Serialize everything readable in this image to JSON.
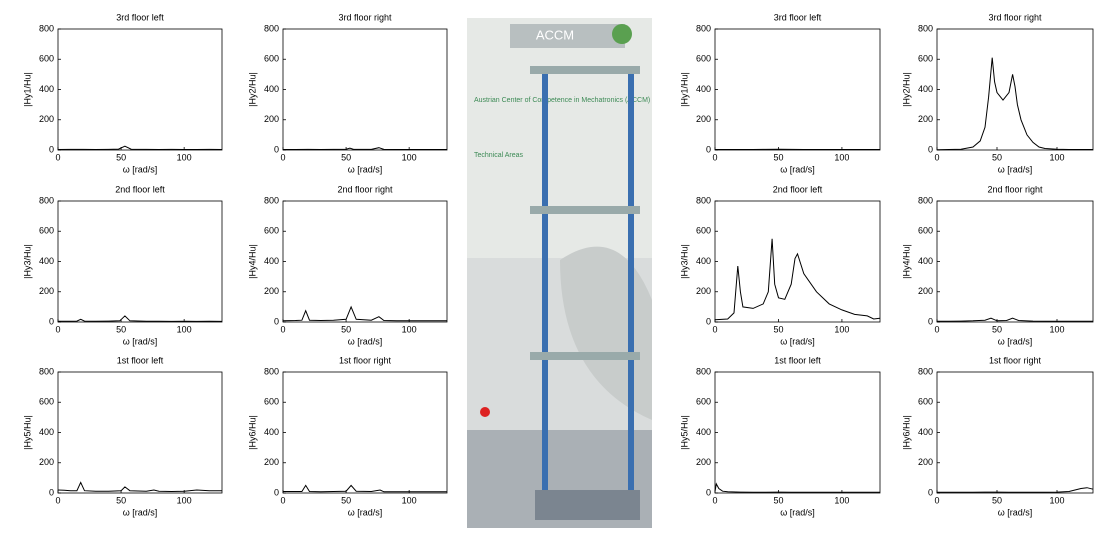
{
  "photo": {
    "logo": "ACCM",
    "heading": "Austrian Center of Competence in Mechatronics (ACCM)",
    "section": "Technical Areas"
  },
  "chart_data": [
    {
      "type": "line",
      "title": "3rd floor left",
      "xlabel": "ω [rad/s]",
      "ylabel": "|Hy1/Hu|",
      "color": "#000000",
      "xlim": [
        0,
        130
      ],
      "ylim": [
        0,
        800
      ],
      "xticks": [
        0,
        50,
        100
      ],
      "yticks": [
        0,
        200,
        400,
        600,
        800
      ],
      "x": [
        0,
        10,
        20,
        30,
        40,
        48,
        53,
        58,
        70,
        80,
        90,
        100,
        110,
        120,
        130
      ],
      "values": [
        3,
        4,
        4,
        3,
        4,
        6,
        25,
        5,
        4,
        3,
        4,
        3,
        3,
        4,
        3
      ]
    },
    {
      "type": "line",
      "title": "3rd floor right",
      "xlabel": "ω [rad/s]",
      "ylabel": "|Hy2/Hu|",
      "color": "#000000",
      "xlim": [
        0,
        130
      ],
      "ylim": [
        0,
        800
      ],
      "xticks": [
        0,
        50,
        100
      ],
      "yticks": [
        0,
        200,
        400,
        600,
        800
      ],
      "x": [
        0,
        10,
        20,
        30,
        40,
        50,
        53,
        56,
        70,
        76,
        80,
        90,
        100,
        110,
        120,
        130
      ],
      "values": [
        3,
        3,
        4,
        3,
        4,
        5,
        12,
        4,
        4,
        15,
        4,
        3,
        3,
        3,
        3,
        3
      ]
    },
    {
      "type": "line",
      "title": "2nd floor left",
      "xlabel": "ω [rad/s]",
      "ylabel": "|Hy3/Hu|",
      "color": "#000000",
      "xlim": [
        0,
        130
      ],
      "ylim": [
        0,
        800
      ],
      "xticks": [
        0,
        50,
        100
      ],
      "yticks": [
        0,
        200,
        400,
        600,
        800
      ],
      "x": [
        0,
        10,
        15,
        18,
        21,
        30,
        40,
        49,
        53,
        57,
        70,
        80,
        90,
        100,
        110,
        120,
        130
      ],
      "values": [
        5,
        5,
        6,
        18,
        6,
        5,
        6,
        8,
        40,
        8,
        5,
        5,
        4,
        5,
        4,
        5,
        4
      ]
    },
    {
      "type": "line",
      "title": "2nd floor right",
      "xlabel": "ω [rad/s]",
      "ylabel": "|Hy4/Hu|",
      "color": "#000000",
      "xlim": [
        0,
        130
      ],
      "ylim": [
        0,
        800
      ],
      "xticks": [
        0,
        50,
        100
      ],
      "yticks": [
        0,
        200,
        400,
        600,
        800
      ],
      "x": [
        0,
        10,
        15,
        18,
        21,
        30,
        40,
        50,
        54,
        58,
        70,
        76,
        80,
        90,
        100,
        110,
        120,
        130
      ],
      "values": [
        8,
        10,
        12,
        75,
        12,
        10,
        12,
        18,
        100,
        18,
        12,
        35,
        10,
        8,
        8,
        8,
        8,
        8
      ]
    },
    {
      "type": "line",
      "title": "1st floor left",
      "xlabel": "ω [rad/s]",
      "ylabel": "|Hy5/Hu|",
      "color": "#000000",
      "xlim": [
        0,
        130
      ],
      "ylim": [
        0,
        800
      ],
      "xticks": [
        0,
        50,
        100
      ],
      "yticks": [
        0,
        200,
        400,
        600,
        800
      ],
      "x": [
        0,
        5,
        10,
        15,
        18,
        21,
        30,
        40,
        50,
        53,
        57,
        70,
        76,
        80,
        90,
        100,
        110,
        120,
        130
      ],
      "values": [
        20,
        18,
        15,
        15,
        70,
        15,
        12,
        12,
        15,
        40,
        15,
        12,
        20,
        12,
        10,
        12,
        20,
        15,
        15
      ]
    },
    {
      "type": "line",
      "title": "1st floor right",
      "xlabel": "ω [rad/s]",
      "ylabel": "|Hy6/Hu|",
      "color": "#000000",
      "xlim": [
        0,
        130
      ],
      "ylim": [
        0,
        800
      ],
      "xticks": [
        0,
        50,
        100
      ],
      "yticks": [
        0,
        200,
        400,
        600,
        800
      ],
      "x": [
        0,
        10,
        15,
        18,
        21,
        30,
        40,
        50,
        54,
        58,
        70,
        77,
        80,
        90,
        100,
        110,
        120,
        130
      ],
      "values": [
        10,
        10,
        10,
        50,
        10,
        8,
        10,
        12,
        50,
        12,
        10,
        20,
        8,
        8,
        8,
        8,
        8,
        8
      ]
    },
    {
      "type": "line",
      "title": "3rd floor left",
      "xlabel": "ω [rad/s]",
      "ylabel": "|Hy1/Hu|",
      "color": "#000000",
      "xlim": [
        0,
        130
      ],
      "ylim": [
        0,
        800
      ],
      "xticks": [
        0,
        50,
        100
      ],
      "yticks": [
        0,
        200,
        400,
        600,
        800
      ],
      "x": [
        0,
        10,
        20,
        30,
        40,
        50,
        60,
        70,
        80,
        90,
        100,
        110,
        120,
        130
      ],
      "values": [
        3,
        3,
        3,
        3,
        4,
        5,
        4,
        3,
        3,
        3,
        3,
        3,
        3,
        3
      ]
    },
    {
      "type": "line",
      "title": "3rd floor right",
      "xlabel": "ω [rad/s]",
      "ylabel": "|Hy2/Hu|",
      "color": "#000000",
      "xlim": [
        0,
        130
      ],
      "ylim": [
        0,
        800
      ],
      "xticks": [
        0,
        50,
        100
      ],
      "yticks": [
        0,
        200,
        400,
        600,
        800
      ],
      "x": [
        0,
        10,
        20,
        30,
        36,
        40,
        43,
        46,
        48,
        50,
        55,
        60,
        63,
        65,
        67,
        70,
        75,
        80,
        85,
        90,
        100,
        110,
        120,
        130
      ],
      "values": [
        2,
        3,
        5,
        20,
        60,
        150,
        350,
        610,
        450,
        380,
        330,
        380,
        500,
        420,
        300,
        200,
        100,
        50,
        20,
        10,
        5,
        3,
        3,
        3
      ]
    },
    {
      "type": "line",
      "title": "2nd floor left",
      "xlabel": "ω [rad/s]",
      "ylabel": "|Hy3/Hu|",
      "color": "#000000",
      "xlim": [
        0,
        130
      ],
      "ylim": [
        0,
        800
      ],
      "xticks": [
        0,
        50,
        100
      ],
      "yticks": [
        0,
        200,
        400,
        600,
        800
      ],
      "x": [
        0,
        10,
        15,
        18,
        20,
        22,
        30,
        38,
        42,
        45,
        47,
        50,
        55,
        60,
        63,
        65,
        70,
        80,
        90,
        100,
        110,
        120,
        125,
        130
      ],
      "values": [
        15,
        20,
        60,
        370,
        200,
        100,
        90,
        120,
        200,
        550,
        250,
        160,
        150,
        250,
        420,
        450,
        320,
        200,
        120,
        80,
        50,
        40,
        20,
        25
      ]
    },
    {
      "type": "line",
      "title": "2nd floor right",
      "xlabel": "ω [rad/s]",
      "ylabel": "|Hy4/Hu|",
      "color": "#000000",
      "xlim": [
        0,
        130
      ],
      "ylim": [
        0,
        800
      ],
      "xticks": [
        0,
        50,
        100
      ],
      "yticks": [
        0,
        200,
        400,
        600,
        800
      ],
      "x": [
        0,
        10,
        20,
        30,
        40,
        45,
        50,
        58,
        63,
        68,
        80,
        90,
        100,
        110,
        120,
        130
      ],
      "values": [
        5,
        5,
        6,
        8,
        12,
        25,
        8,
        10,
        25,
        10,
        6,
        5,
        5,
        5,
        5,
        5
      ]
    },
    {
      "type": "line",
      "title": "1st floor left",
      "xlabel": "ω [rad/s]",
      "ylabel": "|Hy5/Hu|",
      "color": "#000000",
      "xlim": [
        0,
        130
      ],
      "ylim": [
        0,
        800
      ],
      "xticks": [
        0,
        50,
        100
      ],
      "yticks": [
        0,
        200,
        400,
        600,
        800
      ],
      "x": [
        0,
        1,
        3,
        6,
        10,
        20,
        30,
        40,
        50,
        60,
        70,
        80,
        90,
        100,
        110,
        120,
        130
      ],
      "values": [
        10,
        60,
        30,
        12,
        8,
        6,
        5,
        5,
        6,
        5,
        5,
        5,
        5,
        5,
        5,
        5,
        5
      ]
    },
    {
      "type": "line",
      "title": "1st floor right",
      "xlabel": "ω [rad/s]",
      "ylabel": "|Hy6/Hu|",
      "color": "#000000",
      "xlim": [
        0,
        130
      ],
      "ylim": [
        0,
        800
      ],
      "xticks": [
        0,
        50,
        100
      ],
      "yticks": [
        0,
        200,
        400,
        600,
        800
      ],
      "x": [
        0,
        10,
        20,
        30,
        40,
        50,
        60,
        70,
        80,
        90,
        100,
        110,
        115,
        120,
        125,
        130
      ],
      "values": [
        5,
        5,
        5,
        5,
        6,
        6,
        5,
        5,
        5,
        5,
        6,
        10,
        20,
        30,
        35,
        25
      ]
    }
  ]
}
